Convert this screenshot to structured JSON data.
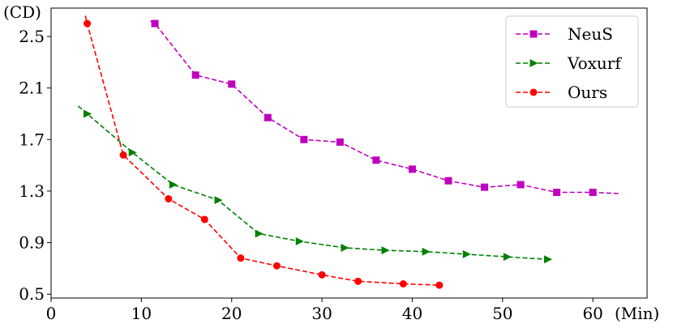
{
  "chart_data": {
    "type": "line",
    "title": "",
    "xlabel": "(Min)",
    "ylabel": "(CD)",
    "xlim": [
      0,
      66
    ],
    "ylim": [
      0.47,
      2.72
    ],
    "xticks": [
      0,
      10,
      20,
      30,
      40,
      50,
      60
    ],
    "yticks": [
      0.5,
      0.9,
      1.3,
      1.7,
      2.1,
      2.5
    ],
    "ytick_labels": [
      "0.5",
      "0.9",
      "1.3",
      "1.7",
      "2.1",
      "2.5"
    ],
    "grid": false,
    "legend_position": "top-right",
    "series": [
      {
        "name": "NeuS",
        "color": "#bf00bf",
        "marker": "square",
        "line_start": [
          11,
          2.62
        ],
        "line_end": [
          63,
          1.28
        ],
        "x": [
          11.5,
          16,
          20,
          24,
          28,
          32,
          36,
          40,
          44,
          48,
          52,
          56,
          60
        ],
        "y": [
          2.6,
          2.2,
          2.13,
          1.87,
          1.7,
          1.68,
          1.54,
          1.47,
          1.38,
          1.33,
          1.35,
          1.29,
          1.29
        ]
      },
      {
        "name": "Voxurf",
        "color": "#008000",
        "marker": "triangle-right",
        "line_start": [
          3,
          1.96
        ],
        "line_end": [
          55,
          0.77
        ],
        "x": [
          4,
          9,
          13.5,
          18.5,
          23,
          27.5,
          32.5,
          37,
          41.5,
          46,
          50.5,
          55
        ],
        "y": [
          1.9,
          1.6,
          1.35,
          1.23,
          0.97,
          0.91,
          0.86,
          0.84,
          0.83,
          0.81,
          0.79,
          0.77
        ]
      },
      {
        "name": "Ours",
        "color": "#ff0000",
        "marker": "circle",
        "line_start": [
          3.8,
          2.66
        ],
        "line_end": [
          43,
          0.57
        ],
        "x": [
          4,
          8,
          13,
          17,
          21,
          25,
          30,
          34,
          39,
          43
        ],
        "y": [
          2.6,
          1.58,
          1.24,
          1.08,
          0.78,
          0.72,
          0.65,
          0.6,
          0.58,
          0.57
        ]
      }
    ]
  }
}
